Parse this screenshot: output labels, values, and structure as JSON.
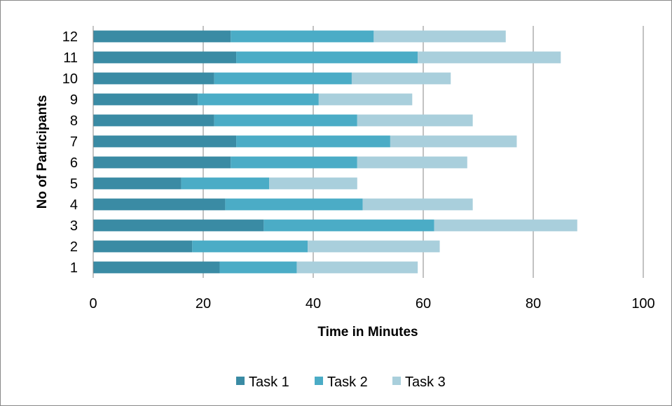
{
  "chart_data": {
    "type": "bar",
    "orientation": "horizontal",
    "stacked": true,
    "title": "",
    "xlabel": "Time in Minutes",
    "ylabel": "No of Participants",
    "xlim": [
      0,
      100
    ],
    "x_ticks": [
      "0",
      "20",
      "40",
      "60",
      "80",
      "100"
    ],
    "grid": "vertical",
    "legend_position": "bottom",
    "categories": [
      "1",
      "2",
      "3",
      "4",
      "5",
      "6",
      "7",
      "8",
      "9",
      "10",
      "11",
      "12"
    ],
    "series": [
      {
        "name": "Task 1",
        "color": "#3a8ba4",
        "values": [
          23,
          18,
          31,
          24,
          16,
          25,
          26,
          22,
          19,
          22,
          26,
          25
        ]
      },
      {
        "name": "Task 2",
        "color": "#4bacc6",
        "values": [
          14,
          21,
          31,
          25,
          16,
          23,
          28,
          26,
          22,
          25,
          33,
          26
        ]
      },
      {
        "name": "Task 3",
        "color": "#a9cfdc",
        "values": [
          22,
          24,
          26,
          20,
          16,
          20,
          23,
          21,
          17,
          18,
          26,
          24
        ]
      }
    ]
  }
}
